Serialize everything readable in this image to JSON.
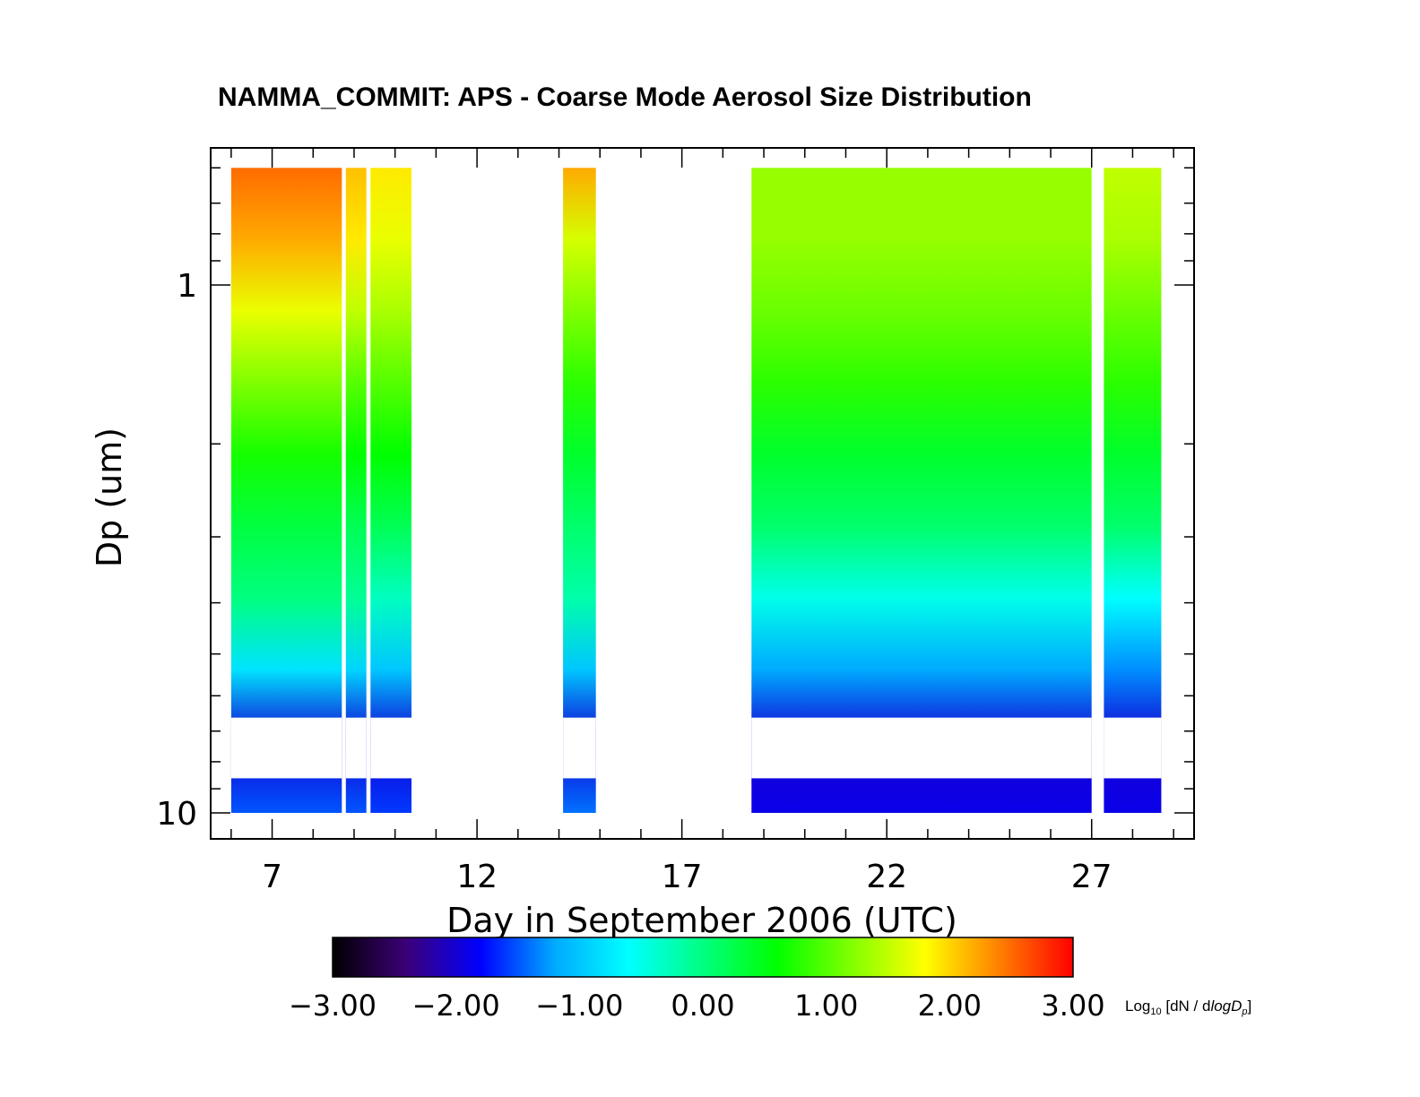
{
  "chart_data": {
    "type": "heatmap",
    "title": "NAMMA_COMMIT: APS - Coarse Mode Aerosol Size Distribution",
    "xlabel": "Day in September 2006 (UTC)",
    "ylabel": "Dp (um)",
    "x_ticks": [
      7,
      12,
      17,
      22,
      27
    ],
    "x_tick_labels": [
      "7",
      "12",
      "17",
      "22",
      "27"
    ],
    "xlim": [
      5.5,
      29.5
    ],
    "y_scale": "log",
    "y_reversed": true,
    "ylim": [
      0.55,
      11.2
    ],
    "y_tick_labels": [
      "1",
      "10"
    ],
    "colorbar": {
      "label_main": "Log",
      "label_sub": "10",
      "label_rest": " [dN / d",
      "label_italic": "logD",
      "label_p": "p",
      "label_end": "]",
      "range": [
        -3.0,
        3.0
      ],
      "tick_labels": [
        "−3.00",
        "−2.00",
        "−1.00",
        "0.00",
        "1.00",
        "2.00",
        "3.00"
      ],
      "colors": [
        "#000000",
        "#3c0078",
        "#0000ff",
        "#00aaff",
        "#00ffff",
        "#00ff80",
        "#00ff00",
        "#80ff00",
        "#ffff00",
        "#ff8000",
        "#ff0000"
      ]
    },
    "data_segments": [
      {
        "x": [
          6.0,
          8.7
        ],
        "profile": [
          2.5,
          2.2,
          1.7,
          1.2,
          0.7,
          0.3,
          0.0,
          -0.8,
          -2.0,
          -1.5
        ]
      },
      {
        "x": [
          8.8,
          9.3
        ],
        "profile": [
          2.1,
          1.9,
          1.5,
          1.0,
          0.6,
          0.2,
          -0.1,
          -0.9,
          -2.0,
          -1.5
        ]
      },
      {
        "x": [
          9.4,
          10.4
        ],
        "profile": [
          1.9,
          1.7,
          1.4,
          1.0,
          0.6,
          0.2,
          -0.3,
          -1.0,
          -2.0,
          -1.6
        ]
      },
      {
        "x": [
          14.1,
          14.9
        ],
        "profile": [
          2.2,
          1.6,
          1.2,
          0.8,
          0.4,
          0.1,
          -0.2,
          -1.0,
          -2.0,
          -1.4
        ]
      },
      {
        "x": [
          18.7,
          27.0
        ],
        "profile": [
          1.3,
          1.3,
          1.1,
          0.8,
          0.4,
          0.1,
          -0.5,
          -1.2,
          -2.0,
          -1.9
        ]
      },
      {
        "x": [
          27.3,
          28.7
        ],
        "profile": [
          1.5,
          1.4,
          1.1,
          0.8,
          0.4,
          0.1,
          -0.6,
          -1.3,
          -2.0,
          -1.9
        ]
      }
    ]
  }
}
